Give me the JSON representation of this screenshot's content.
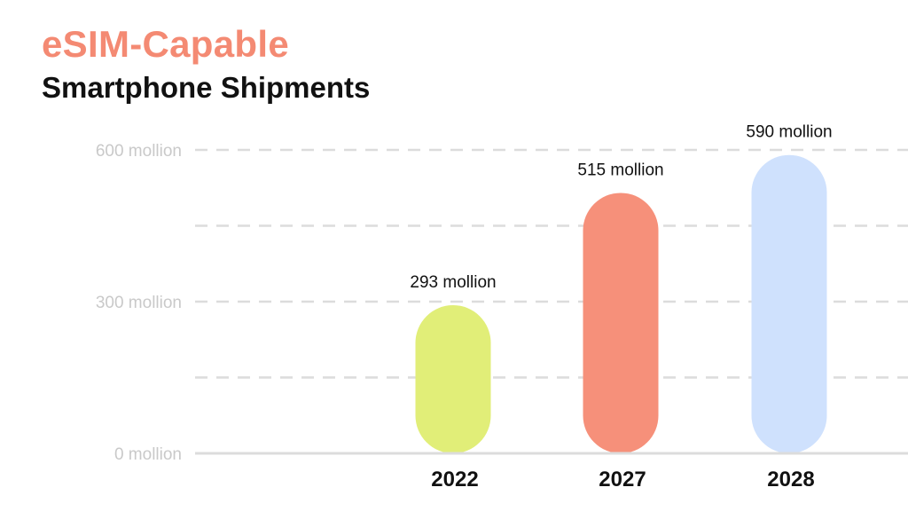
{
  "chart_data": {
    "type": "bar",
    "title": "eSIM-Capable",
    "subtitle": "Smartphone Shipments",
    "categories": [
      "2022",
      "2027",
      "2028"
    ],
    "values": [
      293,
      515,
      590
    ],
    "value_labels": [
      "293 mollion",
      "515 mollion",
      "590 mollion"
    ],
    "bar_colors": [
      "#e1ee78",
      "#f6907a",
      "#cfe1fd"
    ],
    "y_ticks": [
      0,
      300,
      600
    ],
    "y_tick_labels": [
      "0 mollion",
      "300 mollion",
      "600 mollion"
    ],
    "ylim": [
      0,
      600
    ],
    "grid": true,
    "xlabel": "",
    "ylabel": ""
  }
}
